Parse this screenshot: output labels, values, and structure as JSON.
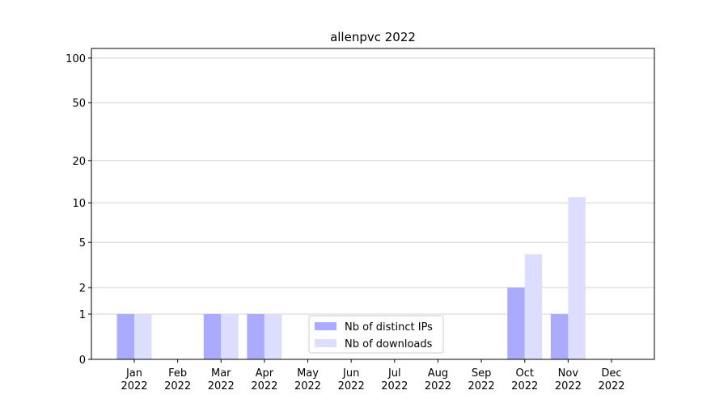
{
  "chart_data": {
    "type": "bar",
    "title": "allenpvc 2022",
    "categories": [
      "Jan\n2022",
      "Feb\n2022",
      "Mar\n2022",
      "Apr\n2022",
      "May\n2022",
      "Jun\n2022",
      "Jul\n2022",
      "Aug\n2022",
      "Sep\n2022",
      "Oct\n2022",
      "Nov\n2022",
      "Dec\n2022"
    ],
    "series": [
      {
        "name": "Nb of distinct IPs",
        "color": "#aaaaff",
        "values": [
          1,
          0,
          1,
          1,
          0,
          0,
          0,
          0,
          0,
          2,
          1,
          0
        ]
      },
      {
        "name": "Nb of downloads",
        "color": "#ddddff",
        "values": [
          1,
          0,
          1,
          1,
          0,
          0,
          0,
          0,
          0,
          4,
          11,
          0
        ]
      }
    ],
    "yscale": "log1p",
    "ylim": [
      0,
      116
    ],
    "yticks": [
      0,
      1,
      2,
      5,
      10,
      20,
      50,
      100
    ],
    "grid": true,
    "legend": "lower center"
  }
}
